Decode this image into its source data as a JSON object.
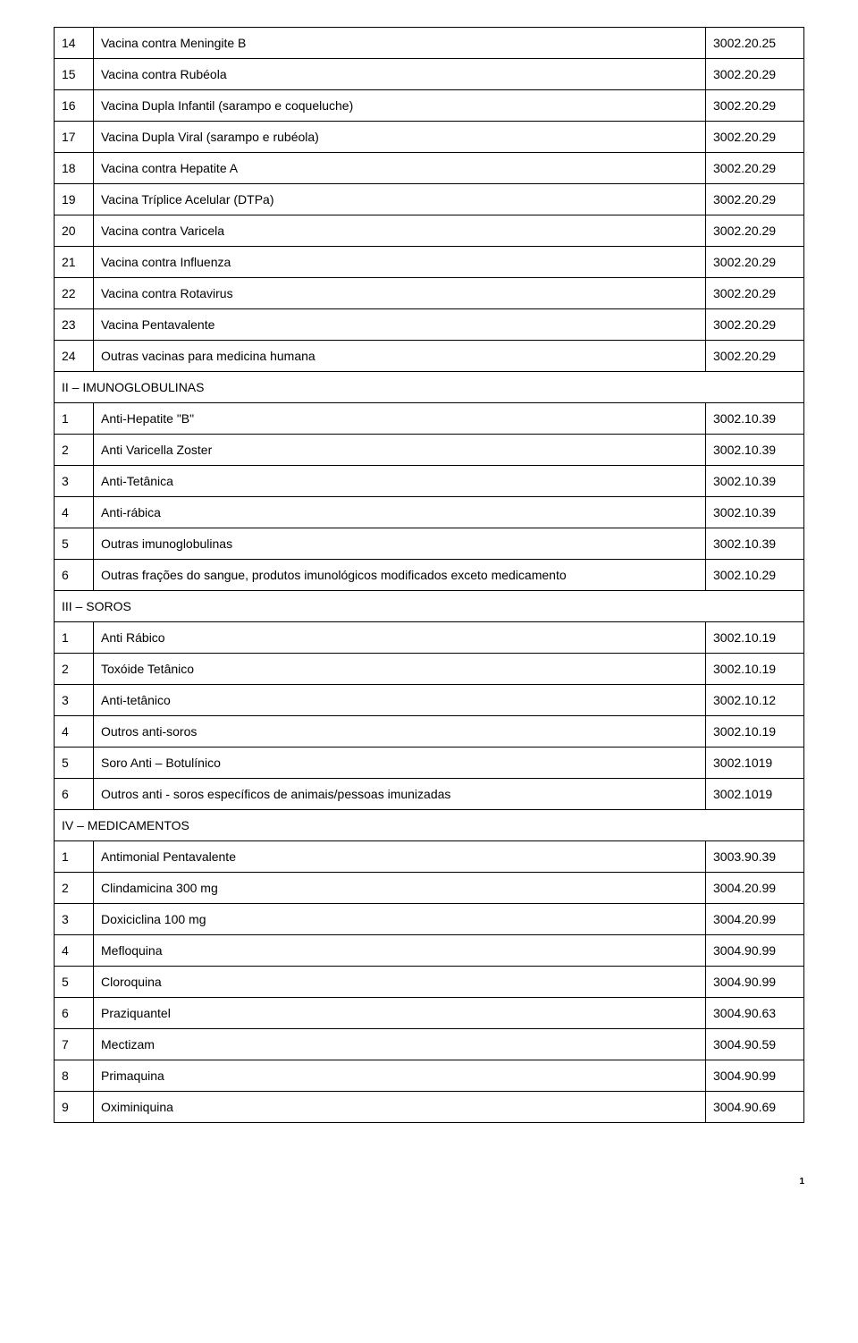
{
  "sections": {
    "s1": {
      "rows": [
        {
          "n": "14",
          "d": "Vacina contra Meningite B",
          "c": "3002.20.25"
        },
        {
          "n": "15",
          "d": "Vacina contra Rubéola",
          "c": "3002.20.29"
        },
        {
          "n": "16",
          "d": "Vacina Dupla Infantil (sarampo e coqueluche)",
          "c": "3002.20.29"
        },
        {
          "n": "17",
          "d": "Vacina Dupla Viral (sarampo e rubéola)",
          "c": "3002.20.29"
        },
        {
          "n": "18",
          "d": "Vacina contra Hepatite A",
          "c": "3002.20.29"
        },
        {
          "n": "19",
          "d": "Vacina Tríplice Acelular (DTPa)",
          "c": "3002.20.29"
        },
        {
          "n": "20",
          "d": "Vacina contra Varicela",
          "c": "3002.20.29"
        },
        {
          "n": "21",
          "d": "Vacina contra Influenza",
          "c": "3002.20.29"
        },
        {
          "n": "22",
          "d": "Vacina contra Rotavirus",
          "c": "3002.20.29"
        },
        {
          "n": "23",
          "d": "Vacina Pentavalente",
          "c": "3002.20.29"
        },
        {
          "n": "24",
          "d": "Outras vacinas para medicina humana",
          "c": "3002.20.29"
        }
      ]
    },
    "s2": {
      "title": "II – IMUNOGLOBULINAS",
      "rows": [
        {
          "n": "1",
          "d": "Anti-Hepatite \"B\"",
          "c": "3002.10.39"
        },
        {
          "n": "2",
          "d": "Anti Varicella Zoster",
          "c": "3002.10.39"
        },
        {
          "n": "3",
          "d": "Anti-Tetânica",
          "c": "3002.10.39"
        },
        {
          "n": "4",
          "d": "Anti-rábica",
          "c": "3002.10.39"
        },
        {
          "n": "5",
          "d": "Outras imunoglobulinas",
          "c": "3002.10.39"
        },
        {
          "n": "6",
          "d": "Outras frações do sangue, produtos imunológicos modificados exceto medicamento",
          "c": "3002.10.29"
        }
      ]
    },
    "s3": {
      "title": "III – SOROS",
      "rows": [
        {
          "n": "1",
          "d": "Anti Rábico",
          "c": "3002.10.19"
        },
        {
          "n": "2",
          "d": "Toxóide Tetânico",
          "c": "3002.10.19"
        },
        {
          "n": "3",
          "d": "Anti-tetânico",
          "c": "3002.10.12"
        },
        {
          "n": "4",
          "d": "Outros anti-soros",
          "c": "3002.10.19"
        },
        {
          "n": "5",
          "d": "Soro Anti – Botulínico",
          "c": "3002.1019"
        },
        {
          "n": "6",
          "d": "Outros anti - soros específicos de animais/pessoas imunizadas",
          "c": "3002.1019"
        }
      ]
    },
    "s4": {
      "title": "IV – MEDICAMENTOS",
      "rows": [
        {
          "n": "1",
          "d": "Antimonial Pentavalente",
          "c": "3003.90.39"
        },
        {
          "n": "2",
          "d": "Clindamicina 300 mg",
          "c": "3004.20.99"
        },
        {
          "n": "3",
          "d": "Doxiciclina 100 mg",
          "c": "3004.20.99"
        },
        {
          "n": "4",
          "d": "Mefloquina",
          "c": "3004.90.99"
        },
        {
          "n": "5",
          "d": "Cloroquina",
          "c": "3004.90.99"
        },
        {
          "n": "6",
          "d": "Praziquantel",
          "c": "3004.90.63"
        },
        {
          "n": "7",
          "d": "Mectizam",
          "c": "3004.90.59"
        },
        {
          "n": "8",
          "d": "Primaquina",
          "c": "3004.90.99"
        },
        {
          "n": "9",
          "d": "Oximiniquina",
          "c": "3004.90.69"
        }
      ]
    }
  },
  "pageNumber": "1"
}
